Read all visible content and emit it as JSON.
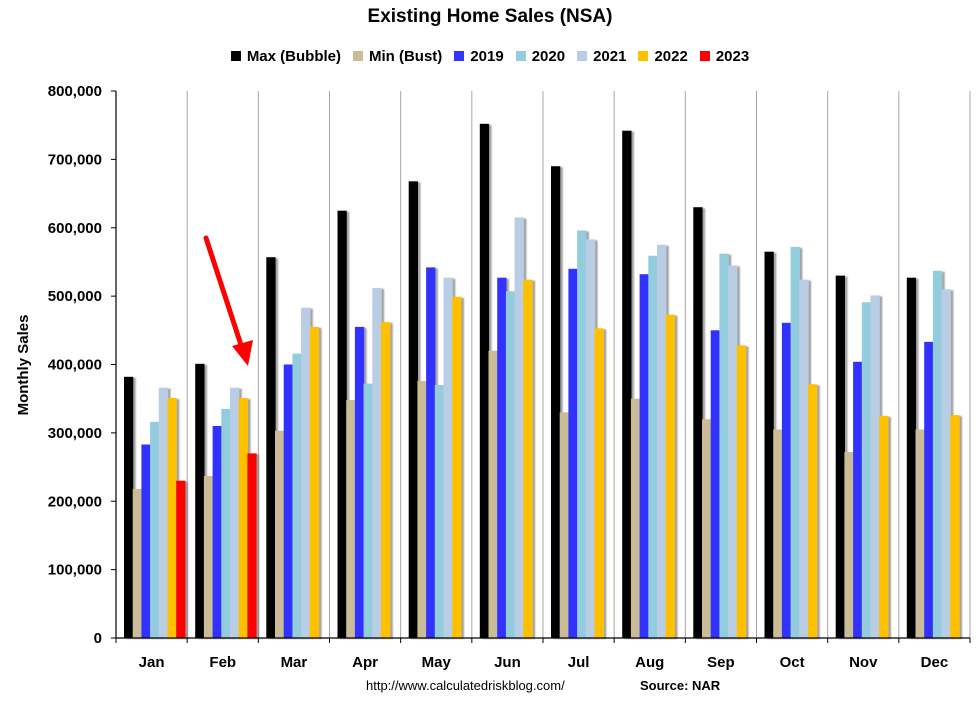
{
  "chart_data": {
    "type": "bar",
    "title": "Existing Home Sales (NSA)",
    "ylabel": "Monthly Sales",
    "xlabel": "",
    "ylim": [
      0,
      800000
    ],
    "yticks": [
      "0",
      "100,000",
      "200,000",
      "300,000",
      "400,000",
      "500,000",
      "600,000",
      "700,000",
      "800,000"
    ],
    "grid": "vertical",
    "legend_position": "top",
    "categories": [
      "Jan",
      "Feb",
      "Mar",
      "Apr",
      "May",
      "Jun",
      "Jul",
      "Aug",
      "Sep",
      "Oct",
      "Nov",
      "Dec"
    ],
    "series": [
      {
        "name": "Max (Bubble)",
        "color": "#000000",
        "values": [
          382000,
          401000,
          557000,
          625000,
          668000,
          752000,
          690000,
          742000,
          630000,
          565000,
          530000,
          527000
        ]
      },
      {
        "name": "Min (Bust)",
        "color": "#c9bc96",
        "values": [
          218000,
          237000,
          303000,
          348000,
          376000,
          420000,
          330000,
          350000,
          320000,
          305000,
          272000,
          305000
        ]
      },
      {
        "name": "2019",
        "color": "#3333ff",
        "values": [
          283000,
          310000,
          400000,
          455000,
          542000,
          527000,
          540000,
          532000,
          450000,
          461000,
          404000,
          433000
        ]
      },
      {
        "name": "2020",
        "color": "#93cddd",
        "values": [
          316000,
          335000,
          416000,
          372000,
          370000,
          507000,
          596000,
          559000,
          562000,
          572000,
          491000,
          537000
        ]
      },
      {
        "name": "2021",
        "color": "#b9cde5",
        "values": [
          366000,
          366000,
          483000,
          512000,
          527000,
          615000,
          583000,
          575000,
          545000,
          524000,
          501000,
          510000
        ]
      },
      {
        "name": "2022",
        "color": "#ffc000",
        "values": [
          351000,
          351000,
          455000,
          462000,
          499000,
          524000,
          453000,
          473000,
          428000,
          371000,
          325000,
          326000
        ]
      },
      {
        "name": "2023",
        "color": "#ff0000",
        "values": [
          230000,
          270000,
          null,
          null,
          null,
          null,
          null,
          null,
          null,
          null,
          null,
          null
        ]
      }
    ]
  },
  "footer": {
    "url": "http://www.calculatedriskblog.com/",
    "source": "Source: NAR"
  }
}
